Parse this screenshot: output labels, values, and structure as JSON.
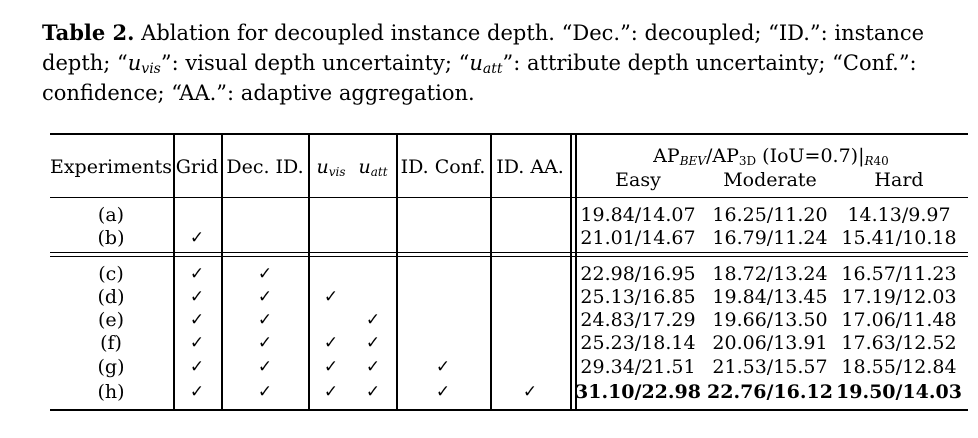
{
  "caption": {
    "label": "Table 2.",
    "text_1": " Ablation for decoupled instance depth. “Dec.”: decoupled; “ID.”: instance depth; “",
    "u_vis_base": "u",
    "u_vis_sub": "vis",
    "text_2": "”: visual depth uncertainty; “",
    "u_att_base": "u",
    "u_att_sub": "att",
    "text_3": "”: attribute depth uncertainty; “Conf.”: confidence; “AA.”: adaptive aggregation."
  },
  "header": {
    "experiments": "Experiments",
    "grid": "Grid",
    "dec_id": "Dec. ID.",
    "u_base": "u",
    "u_vis_sub": "vis",
    "u_att_sub": "att",
    "id_conf": "ID. Conf.",
    "id_aa": "ID. AA.",
    "ap_a": "AP",
    "ap_a_sub": "BEV",
    "ap_b": "/AP",
    "ap_b_sub": "3D",
    "ap_c": " (IoU=0.7)|",
    "ap_c_sub": "R",
    "ap_c_sub2": "40",
    "easy": "Easy",
    "moderate": "Moderate",
    "hard": "Hard"
  },
  "check_mark": "✓",
  "rows": [
    {
      "exp": "(a)",
      "grid": "",
      "dec": "",
      "uvis": "",
      "uatt": "",
      "conf": "",
      "aa": "",
      "easy": "19.84/14.07",
      "moderate": "16.25/11.20",
      "hard": "14.13/9.97"
    },
    {
      "exp": "(b)",
      "grid": "✓",
      "dec": "",
      "uvis": "",
      "uatt": "",
      "conf": "",
      "aa": "",
      "easy": "21.01/14.67",
      "moderate": "16.79/11.24",
      "hard": "15.41/10.18"
    },
    {
      "exp": "(c)",
      "grid": "✓",
      "dec": "✓",
      "uvis": "",
      "uatt": "",
      "conf": "",
      "aa": "",
      "easy": "22.98/16.95",
      "moderate": "18.72/13.24",
      "hard": "16.57/11.23"
    },
    {
      "exp": "(d)",
      "grid": "✓",
      "dec": "✓",
      "uvis": "✓",
      "uatt": "",
      "conf": "",
      "aa": "",
      "easy": "25.13/16.85",
      "moderate": "19.84/13.45",
      "hard": "17.19/12.03"
    },
    {
      "exp": "(e)",
      "grid": "✓",
      "dec": "✓",
      "uvis": "",
      "uatt": "✓",
      "conf": "",
      "aa": "",
      "easy": "24.83/17.29",
      "moderate": "19.66/13.50",
      "hard": "17.06/11.48"
    },
    {
      "exp": "(f)",
      "grid": "✓",
      "dec": "✓",
      "uvis": "✓",
      "uatt": "✓",
      "conf": "",
      "aa": "",
      "easy": "25.23/18.14",
      "moderate": "20.06/13.91",
      "hard": "17.63/12.52"
    },
    {
      "exp": "(g)",
      "grid": "✓",
      "dec": "✓",
      "uvis": "✓",
      "uatt": "✓",
      "conf": "✓",
      "aa": "",
      "easy": "29.34/21.51",
      "moderate": "21.53/15.57",
      "hard": "18.55/12.84"
    },
    {
      "exp": "(h)",
      "grid": "✓",
      "dec": "✓",
      "uvis": "✓",
      "uatt": "✓",
      "conf": "✓",
      "aa": "✓",
      "easy": "31.10/22.98",
      "moderate": "22.76/16.12",
      "hard": "19.50/14.03",
      "bold": true
    }
  ]
}
